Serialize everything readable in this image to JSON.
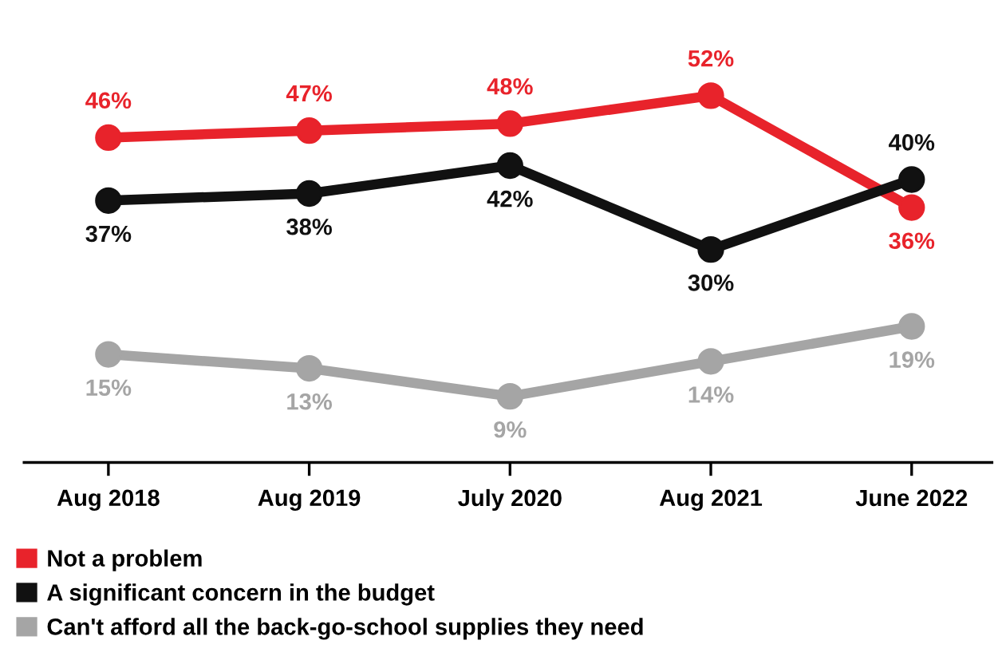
{
  "chart_data": {
    "type": "line",
    "categories": [
      "Aug 2018",
      "Aug 2019",
      "July 2020",
      "Aug 2021",
      "June 2022"
    ],
    "series": [
      {
        "name": "Not a problem",
        "color": "#e8232b",
        "values": [
          46,
          47,
          48,
          52,
          36
        ],
        "value_labels": [
          "46%",
          "47%",
          "48%",
          "52%",
          "36%"
        ]
      },
      {
        "name": "A significant concern in the budget",
        "color": "#111111",
        "values": [
          37,
          38,
          42,
          30,
          40
        ],
        "value_labels": [
          "37%",
          "38%",
          "42%",
          "30%",
          "40%"
        ]
      },
      {
        "name": "Can't afford all the back-go-school supplies they need",
        "color": "#a5a5a5",
        "values": [
          15,
          13,
          9,
          14,
          19
        ],
        "value_labels": [
          "15%",
          "13%",
          "9%",
          "14%",
          "19%"
        ]
      }
    ],
    "marker": "circle",
    "line_style": "solid",
    "grid": false,
    "legend": "bottom",
    "tick_labels": "x"
  }
}
